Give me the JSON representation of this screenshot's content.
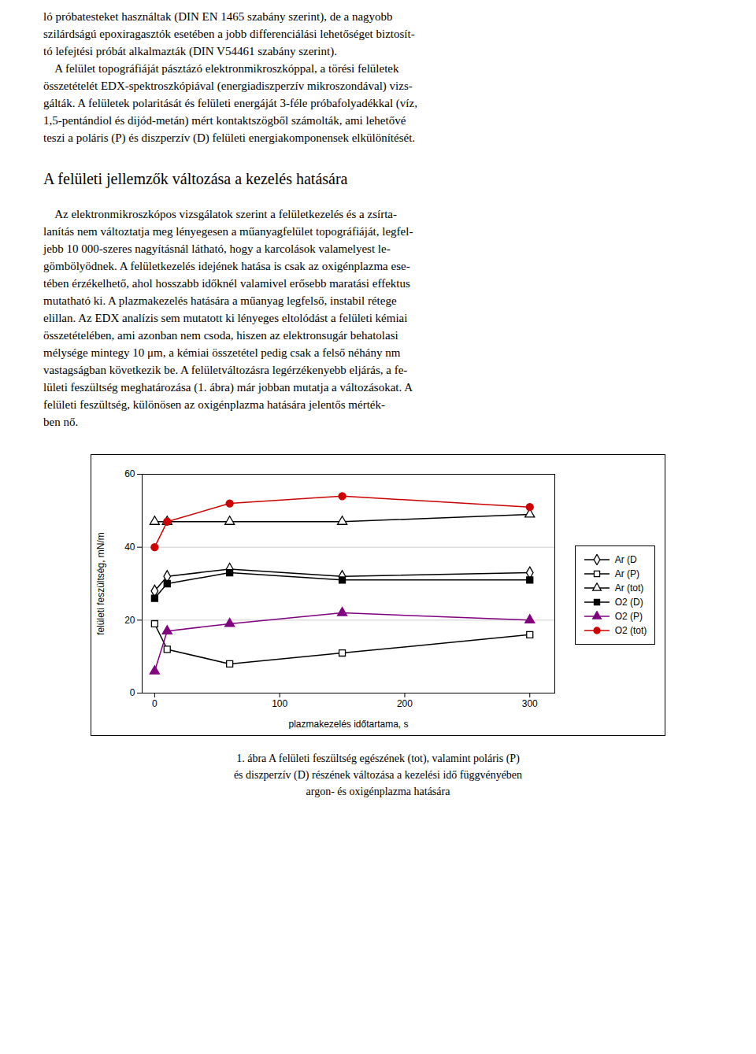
{
  "chart_data": {
    "type": "line",
    "xlabel": "plazmakezelés időtartama, s",
    "ylabel": "felületi feszültség, mN/m",
    "x": [
      0,
      10,
      60,
      150,
      300
    ],
    "series": [
      {
        "name": "Ar (D",
        "color": "#000000",
        "marker": "diamond_open",
        "values": [
          28,
          32,
          34,
          32,
          33
        ]
      },
      {
        "name": "Ar (P)",
        "color": "#000000",
        "marker": "square_open",
        "values": [
          19,
          12,
          8,
          11,
          16
        ]
      },
      {
        "name": "Ar (tot)",
        "color": "#000000",
        "marker": "triangle_open",
        "values": [
          47,
          47,
          47,
          47,
          49
        ]
      },
      {
        "name": "O2 (D)",
        "color": "#000000",
        "marker": "square",
        "values": [
          26,
          30,
          33,
          31,
          31
        ]
      },
      {
        "name": "O2 (P)",
        "color": "#800080",
        "marker": "triangle",
        "values": [
          6,
          17,
          19,
          22,
          20
        ]
      },
      {
        "name": "O2 (tot)",
        "color": "#cc0000",
        "marker": "circle",
        "values": [
          40,
          47,
          52,
          54,
          51
        ]
      }
    ],
    "xlim": [
      -10,
      320
    ],
    "xticks": [
      0,
      100,
      200,
      300
    ],
    "ylim": [
      0,
      60
    ],
    "yticks": [
      0,
      20,
      40,
      60
    ],
    "grid": true,
    "legend": "right",
    "caption": [
      "1. ábra A felületi feszültség egészének (tot), valamint poláris (P)",
      "és diszperzív (D) részének változása a kezelési idő függvényében",
      "argon- és oxigénplazma hatására"
    ]
  },
  "page_lines": [
    "ló próbatesteket használtak (DIN EN 1465 szabány szerint), de a nagyobb",
    "szilárdságú epoxiragasztók esetében a jobb differenciálási lehetőséget biztosít-",
    "tó lefejtési próbát alkalmazták (DIN V54461 szabány szerint).",
    "    A felület topográfiáját pásztázó elektronmikroszkóppal, a törési felületek",
    "összetételét EDX-spektroszkópiával (energiadiszperzív mikroszondával) vizs-",
    "gálták. A felületek polaritását és felületi energáját 3-féle próbafolyadékkal (víz,",
    "1,5-pentándiol és dijód-metán) mért kontaktszögből számolták, ami lehetővé",
    "teszi a poláris (P) és diszperzív (D) felületi energiakomponensek elkülönítését."
  ],
  "section_title": "A felületi jellemzők változása a kezelés hatására",
  "body_lines": [
    "    Az elektronmikroszkópos vizsgálatok szerint a felületkezelés és a zsírta-",
    "lanítás nem változtatja meg lényegesen a műanyagfelület topográfiáját, legfel-",
    "jebb 10 000-szeres nagyításnál látható, hogy a karcolások valamelyest le-",
    "gömbölyödnek. A felületkezelés idejének hatása is csak az oxigénplazma ese-",
    "tében érzékelhető, ahol hosszabb időknél valamivel erősebb maratási effektus",
    "mutatható ki. A plazmakezelés hatására a műanyag legfelső, instabil rétege",
    "elillan. Az EDX analízis sem mutatott ki lényeges eltolódást a felületi kémiai",
    "összetételében, ami azonban nem csoda, hiszen az elektronsugár behatolasi",
    "mélysége mintegy 10 μm, a kémiai összetétel pedig csak a felső néhány nm",
    "vastagságban következik be. A felületváltozásra legérzékenyebb eljárás, a fe-",
    "lületi feszültség meghatározása (1. ábra) már jobban mutatja a változásokat. A",
    "felületi feszültség, különösen az oxigénplazma hatására jelentős mérték-",
    "ben nő."
  ]
}
